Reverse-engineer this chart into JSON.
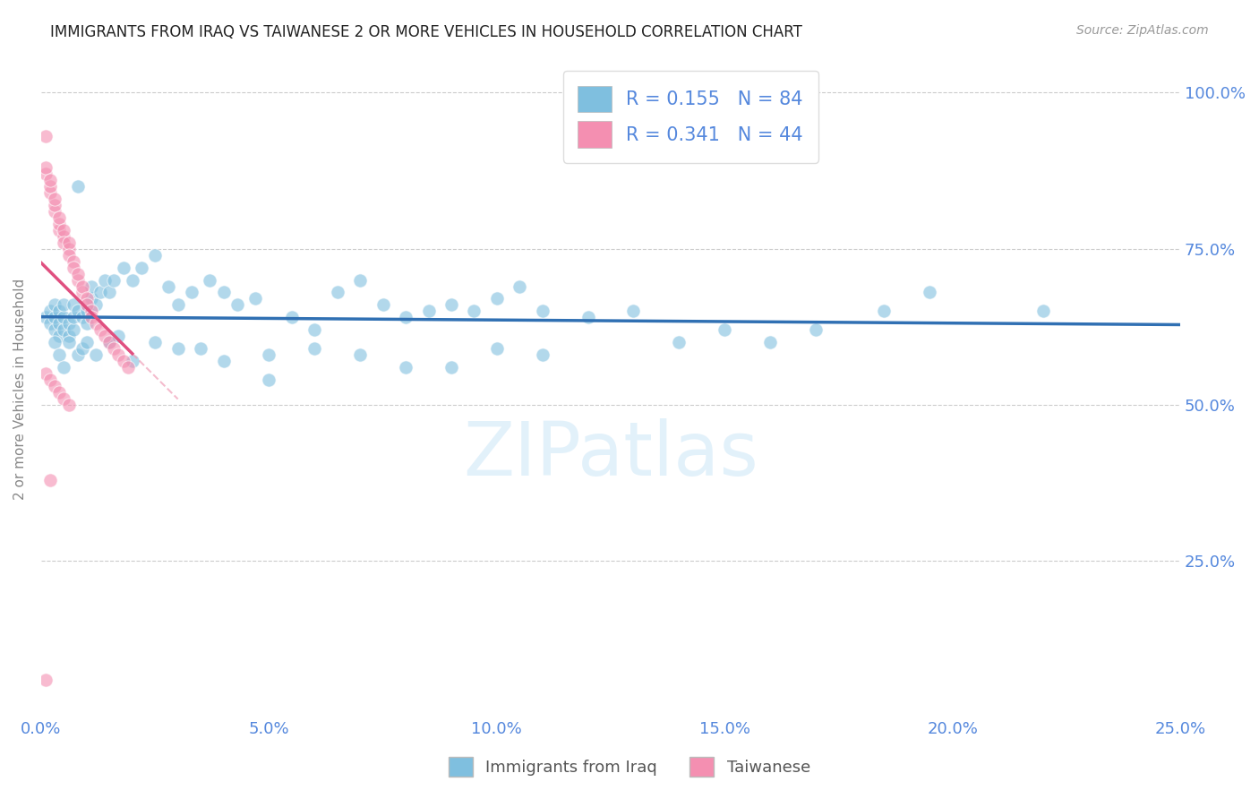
{
  "title": "IMMIGRANTS FROM IRAQ VS TAIWANESE 2 OR MORE VEHICLES IN HOUSEHOLD CORRELATION CHART",
  "source": "Source: ZipAtlas.com",
  "ylabel": "2 or more Vehicles in Household",
  "xlim": [
    0.0,
    0.25
  ],
  "ylim": [
    0.0,
    1.05
  ],
  "x_tick_values": [
    0.0,
    0.05,
    0.1,
    0.15,
    0.2,
    0.25
  ],
  "x_tick_labels": [
    "0.0%",
    "5.0%",
    "10.0%",
    "15.0%",
    "20.0%",
    "25.0%"
  ],
  "y_tick_values": [
    0.25,
    0.5,
    0.75,
    1.0
  ],
  "y_tick_labels": [
    "25.0%",
    "50.0%",
    "75.0%",
    "100.0%"
  ],
  "iraq_R": 0.155,
  "iraq_N": 84,
  "taiwanese_R": 0.341,
  "taiwanese_N": 44,
  "iraq_color": "#7fbfdf",
  "taiwanese_color": "#f48fb1",
  "iraq_line_color": "#3070b3",
  "taiwanese_line_color": "#e05080",
  "taiwanese_line_dashed_color": "#f0a0b8",
  "watermark_color": "#d0e8f8",
  "background_color": "#ffffff",
  "grid_color": "#cccccc",
  "title_color": "#222222",
  "tick_color": "#5588dd",
  "ylabel_color": "#888888",
  "legend_text_color": "#5588dd",
  "bottom_legend_color": "#555555",
  "iraq_x": [
    0.001,
    0.002,
    0.002,
    0.003,
    0.003,
    0.003,
    0.004,
    0.004,
    0.004,
    0.005,
    0.005,
    0.005,
    0.006,
    0.006,
    0.007,
    0.007,
    0.007,
    0.008,
    0.008,
    0.009,
    0.01,
    0.01,
    0.011,
    0.011,
    0.012,
    0.013,
    0.014,
    0.015,
    0.016,
    0.018,
    0.02,
    0.022,
    0.025,
    0.028,
    0.03,
    0.033,
    0.037,
    0.04,
    0.043,
    0.047,
    0.05,
    0.055,
    0.06,
    0.065,
    0.07,
    0.075,
    0.08,
    0.085,
    0.09,
    0.095,
    0.1,
    0.105,
    0.11,
    0.12,
    0.13,
    0.14,
    0.15,
    0.16,
    0.17,
    0.185,
    0.003,
    0.004,
    0.005,
    0.006,
    0.008,
    0.009,
    0.01,
    0.012,
    0.015,
    0.017,
    0.02,
    0.025,
    0.03,
    0.035,
    0.04,
    0.05,
    0.06,
    0.07,
    0.08,
    0.09,
    0.1,
    0.11,
    0.195,
    0.22
  ],
  "iraq_y": [
    0.64,
    0.63,
    0.65,
    0.62,
    0.64,
    0.66,
    0.61,
    0.63,
    0.65,
    0.62,
    0.64,
    0.66,
    0.61,
    0.63,
    0.62,
    0.64,
    0.66,
    0.85,
    0.65,
    0.64,
    0.63,
    0.65,
    0.67,
    0.69,
    0.66,
    0.68,
    0.7,
    0.68,
    0.7,
    0.72,
    0.7,
    0.72,
    0.74,
    0.69,
    0.66,
    0.68,
    0.7,
    0.68,
    0.66,
    0.67,
    0.58,
    0.64,
    0.62,
    0.68,
    0.7,
    0.66,
    0.64,
    0.65,
    0.66,
    0.65,
    0.67,
    0.69,
    0.65,
    0.64,
    0.65,
    0.6,
    0.62,
    0.6,
    0.62,
    0.65,
    0.6,
    0.58,
    0.56,
    0.6,
    0.58,
    0.59,
    0.6,
    0.58,
    0.6,
    0.61,
    0.57,
    0.6,
    0.59,
    0.59,
    0.57,
    0.54,
    0.59,
    0.58,
    0.56,
    0.56,
    0.59,
    0.58,
    0.68,
    0.65
  ],
  "taiwanese_x": [
    0.001,
    0.001,
    0.001,
    0.002,
    0.002,
    0.002,
    0.003,
    0.003,
    0.003,
    0.004,
    0.004,
    0.004,
    0.005,
    0.005,
    0.005,
    0.006,
    0.006,
    0.006,
    0.007,
    0.007,
    0.008,
    0.008,
    0.009,
    0.009,
    0.01,
    0.01,
    0.011,
    0.011,
    0.012,
    0.013,
    0.014,
    0.015,
    0.016,
    0.017,
    0.018,
    0.019,
    0.001,
    0.002,
    0.003,
    0.004,
    0.005,
    0.006,
    0.002,
    0.001
  ],
  "taiwanese_y": [
    0.93,
    0.87,
    0.88,
    0.84,
    0.85,
    0.86,
    0.81,
    0.82,
    0.83,
    0.78,
    0.79,
    0.8,
    0.77,
    0.78,
    0.76,
    0.75,
    0.76,
    0.74,
    0.73,
    0.72,
    0.7,
    0.71,
    0.68,
    0.69,
    0.67,
    0.66,
    0.65,
    0.64,
    0.63,
    0.62,
    0.61,
    0.6,
    0.59,
    0.58,
    0.57,
    0.56,
    0.55,
    0.54,
    0.53,
    0.52,
    0.51,
    0.5,
    0.38,
    0.06
  ]
}
